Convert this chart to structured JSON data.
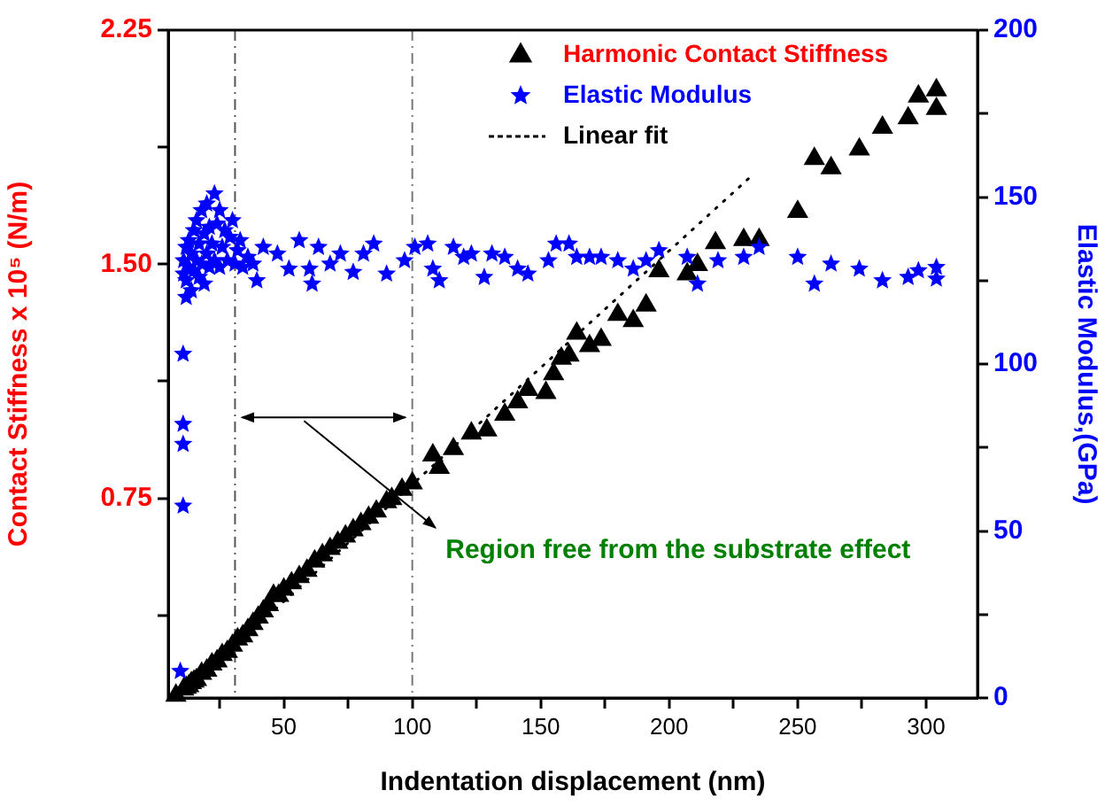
{
  "chart_data": {
    "type": "scatter",
    "xlabel": "Indentation displacement (nm)",
    "ylabel": "Contact Stiffness x 10⁵ (N/m)",
    "y2label": "Elastic Modulus,(GPa)",
    "xlim": [
      5,
      320
    ],
    "xticks": [
      {
        "value": 25,
        "label": null
      },
      50,
      {
        "value": 75,
        "label": null
      },
      100,
      {
        "value": 125,
        "label": null
      },
      150,
      {
        "value": 175,
        "label": null
      },
      200,
      {
        "value": 225,
        "label": null
      },
      250,
      {
        "value": 275,
        "label": null
      },
      300
    ],
    "ylim": [
      0.11,
      2.25
    ],
    "yticks": [
      {
        "value": 0.375,
        "label": null
      },
      {
        "value": 0.75,
        "label": "0.75"
      },
      {
        "value": 1.125,
        "label": null
      },
      {
        "value": 1.5,
        "label": "1.50"
      },
      {
        "value": 1.875,
        "label": null
      },
      {
        "value": 2.25,
        "label": "2.25"
      }
    ],
    "y2lim": [
      0,
      200
    ],
    "y2ticks": [
      0,
      {
        "value": 25,
        "label": null
      },
      50,
      {
        "value": 75,
        "label": null
      },
      100,
      {
        "value": 125,
        "label": null
      },
      150,
      {
        "value": 175,
        "label": null
      },
      200
    ],
    "grid": false,
    "legend": "top right",
    "ref_lines": [
      {
        "axis": "x",
        "value": 31,
        "color": "#555555",
        "line_style": "dashed"
      },
      {
        "axis": "x",
        "value": 100,
        "color": "#777777",
        "line_style": "dashed"
      }
    ],
    "annotations": [
      "Region free from the substrate effect"
    ],
    "series": [
      {
        "name": "Harmonic Contact Stiffness",
        "color": "#000000",
        "marker": "triangle",
        "x": [
          8,
          11,
          12,
          13,
          14,
          15,
          16,
          18,
          20,
          22,
          24,
          26,
          28,
          30,
          32,
          34,
          36,
          38,
          40,
          42,
          44,
          46,
          48,
          50,
          53,
          56,
          59,
          62,
          65,
          68,
          71,
          74,
          77,
          80,
          83,
          86,
          90,
          92,
          96,
          100,
          108,
          110.5,
          116,
          123,
          129,
          136,
          141,
          145,
          152,
          155,
          158,
          161,
          164,
          169,
          173.5,
          180,
          186,
          191,
          196,
          207,
          211,
          218,
          229,
          235,
          250,
          256.5,
          263,
          274,
          283,
          293,
          297,
          304,
          304
        ],
        "values": [
          0.12,
          0.14,
          0.145,
          0.15,
          0.16,
          0.165,
          0.17,
          0.19,
          0.2,
          0.22,
          0.23,
          0.25,
          0.26,
          0.28,
          0.3,
          0.31,
          0.33,
          0.35,
          0.37,
          0.39,
          0.41,
          0.44,
          0.44,
          0.46,
          0.48,
          0.5,
          0.52,
          0.55,
          0.57,
          0.59,
          0.61,
          0.63,
          0.65,
          0.67,
          0.69,
          0.71,
          0.74,
          0.75,
          0.78,
          0.8,
          0.89,
          0.85,
          0.91,
          0.96,
          0.97,
          1.02,
          1.06,
          1.1,
          1.09,
          1.15,
          1.2,
          1.21,
          1.28,
          1.24,
          1.26,
          1.34,
          1.32,
          1.37,
          1.48,
          1.47,
          1.5,
          1.57,
          1.58,
          1.58,
          1.67,
          1.84,
          1.81,
          1.87,
          1.94,
          1.97,
          2.04,
          2.06,
          2.0
        ]
      },
      {
        "name": "Elastic Modulus",
        "color": "#0000ff",
        "marker": "star",
        "axis": "y2",
        "x": [
          9.7,
          10.8,
          10.8,
          10.8,
          10.8,
          11,
          11,
          12,
          12,
          12,
          13,
          13,
          14,
          14,
          15,
          15,
          16,
          16,
          17,
          17,
          18,
          18,
          19,
          19,
          20,
          20,
          21,
          21,
          22,
          23,
          23,
          24,
          25,
          25,
          26,
          27,
          28,
          29,
          30,
          31,
          32,
          33,
          34,
          36,
          38,
          39.5,
          42,
          47.5,
          52,
          56,
          60,
          61,
          63.5,
          68,
          72,
          77,
          81,
          85,
          90,
          97,
          101,
          106,
          108,
          110.5,
          116,
          120,
          123,
          128,
          131,
          136,
          141,
          145,
          153,
          156,
          161,
          164,
          169,
          173.5,
          180,
          186,
          191,
          196,
          207,
          211,
          219,
          229,
          235,
          250,
          256.5,
          263,
          274,
          283,
          293,
          297,
          304,
          304
        ],
        "values": [
          8,
          57.5,
          76,
          82,
          103,
          127,
          131,
          120,
          125,
          135,
          129,
          137,
          122,
          133,
          140,
          128,
          131,
          143,
          126,
          136,
          146,
          130,
          124,
          139,
          148,
          133,
          129,
          141,
          136,
          151,
          131,
          142,
          146,
          129,
          135,
          140,
          131,
          138,
          143,
          130,
          134,
          137,
          129,
          132,
          130,
          125,
          135,
          133,
          128.5,
          137,
          128.5,
          124,
          135,
          130,
          133,
          127.5,
          133,
          136,
          127,
          131,
          135,
          136,
          128.5,
          125,
          135,
          132,
          133,
          126,
          133,
          132,
          128.5,
          127,
          131,
          136,
          136,
          132,
          132,
          132,
          131,
          128.5,
          131,
          134,
          132,
          124,
          131,
          132,
          135,
          132,
          124,
          130,
          128.5,
          125,
          126,
          128,
          129,
          125.5
        ]
      },
      {
        "name": "Linear fit",
        "color": "#000000",
        "type": "line",
        "marker": "none",
        "line_style": "dotted",
        "x": [
          10,
          233
        ],
        "values": [
          0.12,
          1.79
        ]
      }
    ]
  }
}
